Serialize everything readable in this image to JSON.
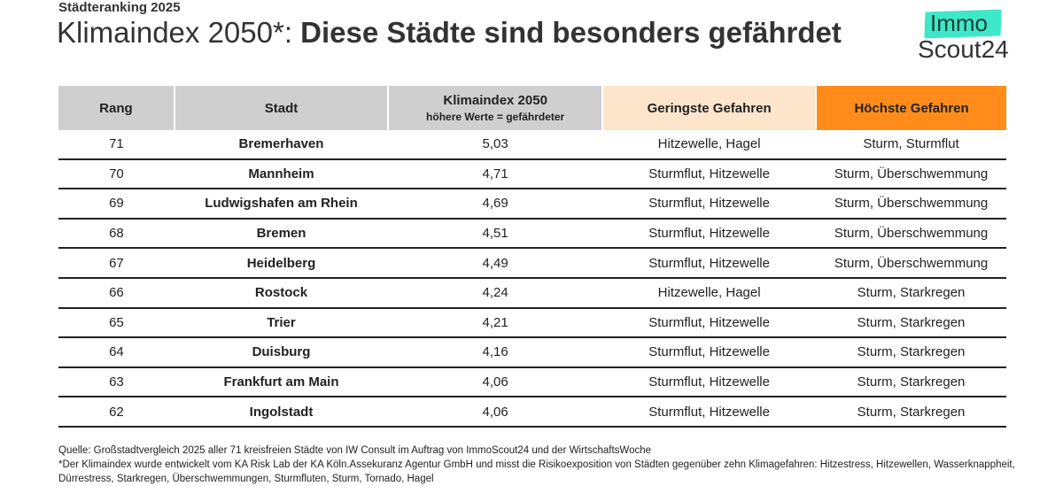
{
  "kicker": "Städteranking 2025",
  "title_light": "Klimaindex 2050*: ",
  "title_bold": "Diese Städte sind besonders gefährdet",
  "logo": {
    "line1": "Immo",
    "line2": "Scout24",
    "accent": "#3de8c8"
  },
  "headers": {
    "rank": "Rang",
    "city": "Stadt",
    "index": "Klimaindex 2050",
    "index_sub": "höhere Werte = gefährdeter",
    "low": "Geringste Gefahren",
    "high": "Höchste Gefahren"
  },
  "colors": {
    "header_gray": "#cfcfcf",
    "low": "#fde5cc",
    "high": "#ff8c1a"
  },
  "rows": [
    {
      "rank": "71",
      "city": "Bremerhaven",
      "index": "5,03",
      "low": "Hitzewelle, Hagel",
      "high": "Sturm, Sturmflut"
    },
    {
      "rank": "70",
      "city": "Mannheim",
      "index": "4,71",
      "low": "Sturmflut, Hitzewelle",
      "high": "Sturm, Überschwemmung"
    },
    {
      "rank": "69",
      "city": "Ludwigshafen am Rhein",
      "index": "4,69",
      "low": "Sturmflut, Hitzewelle",
      "high": "Sturm, Überschwemmung"
    },
    {
      "rank": "68",
      "city": "Bremen",
      "index": "4,51",
      "low": "Sturmflut, Hitzewelle",
      "high": "Sturm, Überschwemmung"
    },
    {
      "rank": "67",
      "city": "Heidelberg",
      "index": "4,49",
      "low": "Sturmflut, Hitzewelle",
      "high": "Sturm, Überschwemmung"
    },
    {
      "rank": "66",
      "city": "Rostock",
      "index": "4,24",
      "low": "Hitzewelle, Hagel",
      "high": "Sturm, Starkregen"
    },
    {
      "rank": "65",
      "city": "Trier",
      "index": "4,21",
      "low": "Sturmflut, Hitzewelle",
      "high": "Sturm, Starkregen"
    },
    {
      "rank": "64",
      "city": "Duisburg",
      "index": "4,16",
      "low": "Sturmflut, Hitzewelle",
      "high": "Sturm, Starkregen"
    },
    {
      "rank": "63",
      "city": "Frankfurt am Main",
      "index": "4,06",
      "low": "Sturmflut, Hitzewelle",
      "high": "Sturm, Starkregen"
    },
    {
      "rank": "62",
      "city": "Ingolstadt",
      "index": "4,06",
      "low": "Sturmflut, Hitzewelle",
      "high": "Sturm, Starkregen"
    }
  ],
  "footer": {
    "source": "Quelle: Großstadtvergleich 2025 aller 71 kreisfreien Städte von IW Consult im Auftrag von ImmoScout24 und der WirtschaftsWoche",
    "note": "*Der Klimaindex wurde entwickelt vom KA Risk Lab der KA Köln.Assekuranz Agentur GmbH und misst die Risikoexposition von Städten gegenüber zehn Klimagefahren: Hitzestress, Hitzewellen, Wasserknappheit, Dürrestress, Starkregen, Überschwemmungen, Sturmfluten, Sturm, Tornado, Hagel"
  }
}
